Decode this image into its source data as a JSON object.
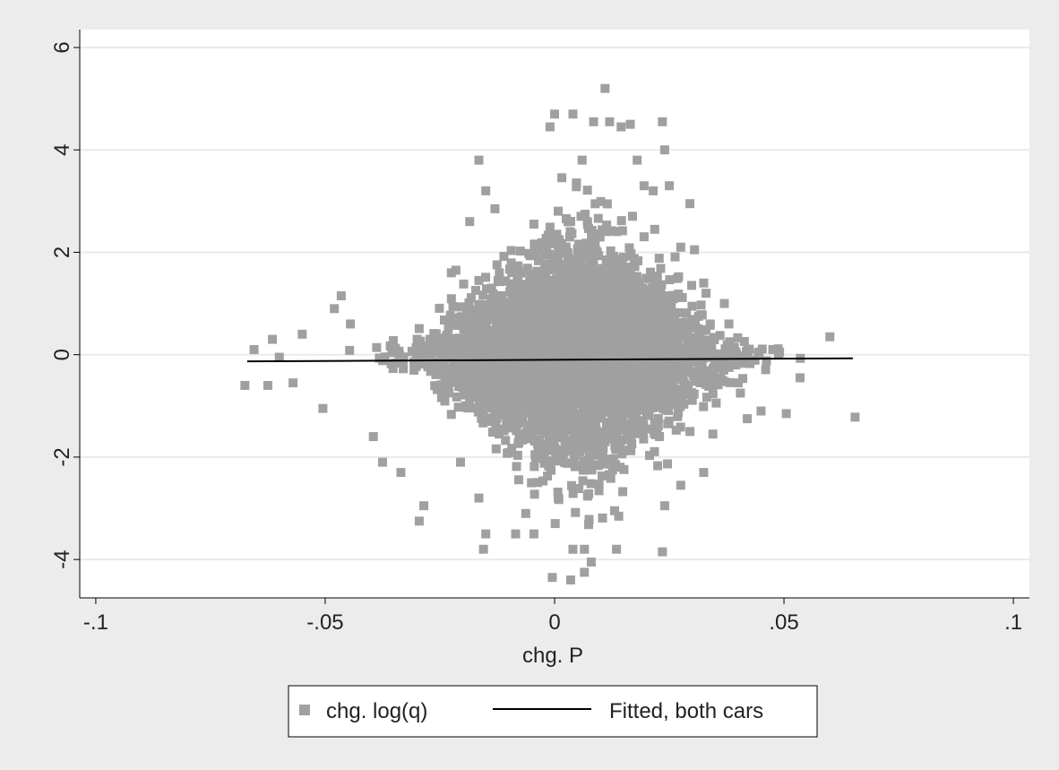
{
  "chart_data": {
    "type": "scatter",
    "xlabel": "chg. P",
    "ylabel": "",
    "xlim": [
      -0.1035,
      0.1035
    ],
    "ylim": [
      -4.75,
      6.35
    ],
    "xticks": [
      -0.1,
      -0.05,
      0,
      0.05,
      0.1
    ],
    "xtick_labels": [
      "-.1",
      "-.05",
      "0",
      ".05",
      ".1"
    ],
    "yticks": [
      -4,
      -2,
      0,
      2,
      4,
      6
    ],
    "ytick_labels": [
      "-4",
      "-2",
      "0",
      "2",
      "4",
      "6"
    ],
    "grid": "horizontal",
    "legend_position": "bottom",
    "series": [
      {
        "name": "chg. log(q)",
        "kind": "scatter",
        "color": "#a0a0a0",
        "points": [
          [
            0.011,
            5.2
          ],
          [
            0.0,
            4.7
          ],
          [
            0.004,
            4.7
          ],
          [
            0.0085,
            4.55
          ],
          [
            0.012,
            4.55
          ],
          [
            0.0235,
            4.55
          ],
          [
            0.0165,
            4.5
          ],
          [
            0.0145,
            4.45
          ],
          [
            -0.001,
            4.45
          ],
          [
            0.024,
            4.0
          ],
          [
            -0.0165,
            3.8
          ],
          [
            0.006,
            3.8
          ],
          [
            0.018,
            3.8
          ],
          [
            0.0195,
            3.3
          ],
          [
            0.0215,
            3.2
          ],
          [
            0.025,
            3.3
          ],
          [
            0.0295,
            2.95
          ],
          [
            -0.015,
            3.2
          ],
          [
            -0.013,
            2.85
          ],
          [
            -0.0185,
            2.6
          ],
          [
            -0.0045,
            2.55
          ],
          [
            0.0275,
            2.1
          ],
          [
            0.0305,
            2.05
          ],
          [
            -0.0225,
            1.6
          ],
          [
            -0.0215,
            1.65
          ],
          [
            -0.0165,
            1.45
          ],
          [
            -0.0465,
            1.15
          ],
          [
            -0.048,
            0.9
          ],
          [
            -0.0445,
            0.6
          ],
          [
            0.0325,
            1.4
          ],
          [
            0.037,
            1.0
          ],
          [
            0.038,
            0.6
          ],
          [
            -0.0615,
            0.3
          ],
          [
            -0.0655,
            0.1
          ],
          [
            0.06,
            0.35
          ],
          [
            0.0445,
            0.0
          ],
          [
            -0.0675,
            -0.6
          ],
          [
            -0.0625,
            -0.6
          ],
          [
            -0.057,
            -0.55
          ],
          [
            0.0535,
            -0.45
          ],
          [
            0.0505,
            -1.15
          ],
          [
            0.0655,
            -1.22
          ],
          [
            0.042,
            -1.25
          ],
          [
            0.045,
            -1.1
          ],
          [
            -0.0505,
            -1.05
          ],
          [
            -0.0395,
            -1.6
          ],
          [
            -0.0375,
            -2.1
          ],
          [
            -0.0335,
            -2.3
          ],
          [
            -0.0295,
            -3.25
          ],
          [
            -0.0285,
            -2.95
          ],
          [
            -0.0205,
            -2.1
          ],
          [
            -0.0165,
            -2.8
          ],
          [
            -0.015,
            -3.5
          ],
          [
            -0.0155,
            -3.8
          ],
          [
            -0.0085,
            -3.5
          ],
          [
            -0.0045,
            -3.5
          ],
          [
            0.004,
            -3.8
          ],
          [
            0.0065,
            -3.8
          ],
          [
            0.008,
            -4.05
          ],
          [
            0.0035,
            -4.4
          ],
          [
            -0.0005,
            -4.35
          ],
          [
            0.0065,
            -4.25
          ],
          [
            0.0135,
            -3.8
          ],
          [
            0.0235,
            -3.85
          ],
          [
            0.024,
            -2.95
          ],
          [
            0.0325,
            -2.3
          ],
          [
            0.0345,
            -1.55
          ],
          [
            0.0275,
            -2.55
          ],
          [
            0.0295,
            -1.5
          ],
          [
            0.0395,
            -0.2
          ],
          [
            0.0405,
            -0.75
          ],
          [
            0.0365,
            -0.5
          ],
          [
            -0.06,
            -0.05
          ],
          [
            -0.055,
            0.4
          ]
        ],
        "note_density": "dense cloud of several thousand points concentrated around x in [-0.045, 0.04], y in [-3, 3]"
      },
      {
        "name": "Fitted, both cars",
        "kind": "line",
        "color": "#000000",
        "x": [
          -0.067,
          0.065
        ],
        "y": [
          -0.13,
          -0.07
        ]
      }
    ]
  }
}
